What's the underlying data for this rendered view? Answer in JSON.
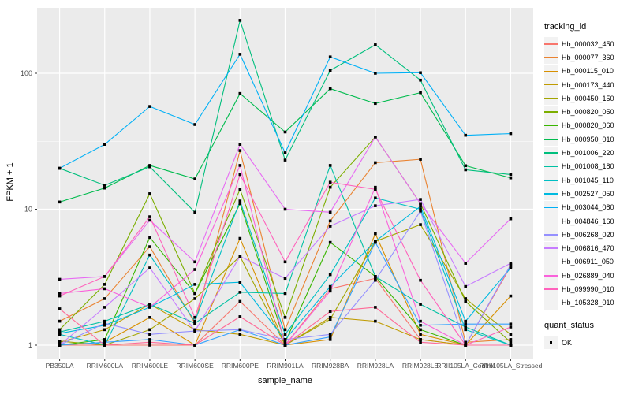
{
  "chart_data": {
    "type": "line",
    "xlabel": "sample_name",
    "ylabel": "FPKM + 1",
    "y_scale": "log10",
    "y_ticks": [
      1,
      10,
      100
    ],
    "y_tick_labels": [
      "1",
      "10",
      "100"
    ],
    "y_minor_gridlines": [
      3.162,
      31.62
    ],
    "ylim": [
      0.8,
      310
    ],
    "grid": "on",
    "legend_position": "right",
    "categories": [
      "PB350LA",
      "RRIM600LA",
      "RRIM600LE",
      "RRIM600SE",
      "RRIM600PE",
      "RRIM901LA",
      "RRIM928BA",
      "RRIM928LA",
      "RRIM928LE",
      "RRII105LA_Control",
      "RRII105LA_Stressed"
    ],
    "series": [
      {
        "name": "Hb_000032_450",
        "color": "#F8766D",
        "values": [
          1.0,
          1.0,
          1.0,
          1.0,
          2.1,
          1.0,
          2.6,
          3.1,
          1.1,
          1.0,
          3.8
        ]
      },
      {
        "name": "Hb_000077_360",
        "color": "#EA8331",
        "values": [
          1.5,
          2.2,
          5.3,
          1.45,
          27,
          1.3,
          8.2,
          22,
          23.3,
          1.05,
          1.1
        ]
      },
      {
        "name": "Hb_000115_010",
        "color": "#D89000",
        "values": [
          1.0,
          1.05,
          1.6,
          1.0,
          6.1,
          1.0,
          1.1,
          6.6,
          1.2,
          1.0,
          2.3
        ]
      },
      {
        "name": "Hb_000173_440",
        "color": "#C09B00",
        "values": [
          1.05,
          1.3,
          2.0,
          1.3,
          1.2,
          1.0,
          1.6,
          1.5,
          1.1,
          1.0,
          1.0
        ]
      },
      {
        "name": "Hb_000450_150",
        "color": "#A3A500",
        "values": [
          1.07,
          1.0,
          1.3,
          2.2,
          4.5,
          1.0,
          1.55,
          5.8,
          7.7,
          2.2,
          1.2
        ]
      },
      {
        "name": "Hb_000820_050",
        "color": "#7CAE00",
        "values": [
          1.3,
          2.8,
          13,
          2.4,
          14,
          1.6,
          14.5,
          34,
          11,
          2.1,
          1.05
        ]
      },
      {
        "name": "Hb_000820_060",
        "color": "#39B600",
        "values": [
          1.0,
          1.1,
          6.2,
          2.4,
          11,
          1.05,
          5.7,
          3.2,
          1.3,
          1.0,
          1.0
        ]
      },
      {
        "name": "Hb_000950_010",
        "color": "#00BB4E",
        "values": [
          11.3,
          14.3,
          21,
          16.7,
          71,
          37,
          77,
          60,
          72,
          20.9,
          17
        ]
      },
      {
        "name": "Hb_001006_220",
        "color": "#00BF7D",
        "values": [
          20,
          15,
          20.5,
          9.5,
          245,
          23,
          105,
          162,
          89,
          19.5,
          18
        ]
      },
      {
        "name": "Hb_001008_180",
        "color": "#00C1A3",
        "values": [
          1.25,
          1.5,
          2.0,
          1.45,
          2.45,
          2.4,
          21,
          3.2,
          2.0,
          1.36,
          1.0
        ]
      },
      {
        "name": "Hb_001045_110",
        "color": "#00BFC4",
        "values": [
          1.2,
          1.0,
          4.6,
          1.5,
          11.5,
          1.2,
          3.3,
          12.1,
          10,
          1.3,
          1.0
        ]
      },
      {
        "name": "Hb_002527_050",
        "color": "#00BAE0",
        "values": [
          1.22,
          1.4,
          1.9,
          2.8,
          2.9,
          1.1,
          2.7,
          5.8,
          10.5,
          1.5,
          3.7
        ]
      },
      {
        "name": "Hb_003044_080",
        "color": "#00B0F6",
        "values": [
          20,
          30,
          57,
          42,
          138,
          26,
          132,
          100,
          101,
          35,
          36
        ]
      },
      {
        "name": "Hb_004846_160",
        "color": "#35A2FF",
        "values": [
          1.0,
          1.05,
          1.1,
          1.0,
          1.3,
          1.0,
          1.15,
          5.7,
          1.4,
          1.43,
          1.43
        ]
      },
      {
        "name": "Hb_006268_020",
        "color": "#9590FF",
        "values": [
          1.0,
          1.45,
          1.2,
          1.27,
          1.3,
          1.1,
          1.2,
          3.0,
          9.7,
          1.0,
          3.9
        ]
      },
      {
        "name": "Hb_006816_470",
        "color": "#C77CFF",
        "values": [
          1.0,
          1.9,
          3.7,
          1.27,
          4.5,
          3.1,
          7.5,
          10.6,
          11.8,
          2.7,
          4.0
        ]
      },
      {
        "name": "Hb_006911_050",
        "color": "#E76BF3",
        "values": [
          3.05,
          3.2,
          8.3,
          4.1,
          30,
          10,
          9.5,
          34,
          11,
          4.0,
          8.5
        ]
      },
      {
        "name": "Hb_026889_040",
        "color": "#FA62DB",
        "values": [
          2.4,
          2.6,
          1.9,
          3.6,
          21,
          1.0,
          2.5,
          14.5,
          1.5,
          1.0,
          1.0
        ]
      },
      {
        "name": "Hb_099990_010",
        "color": "#FF62BC",
        "values": [
          2.3,
          3.2,
          8.8,
          1.6,
          18,
          4.1,
          15.8,
          14,
          3.0,
          1.0,
          1.36
        ]
      },
      {
        "name": "Hb_105328_010",
        "color": "#FF6A98",
        "values": [
          1.85,
          1.0,
          1.05,
          1.0,
          1.62,
          1.0,
          1.77,
          1.9,
          1.05,
          1.0,
          1.0
        ]
      }
    ],
    "legend": {
      "color_title": "tracking_id",
      "shape_title": "quant_status",
      "shape_items": [
        {
          "label": "OK"
        }
      ]
    },
    "point": {
      "shape": "filled-square",
      "color": "#000000"
    },
    "style": {
      "panel_bg": "#EBEBEB",
      "grid_color": "#FFFFFF",
      "tick_label_color": "#4D4D4D",
      "tick_mark_color": "#333333",
      "legend_key_bg": "#F2F2F2"
    }
  }
}
